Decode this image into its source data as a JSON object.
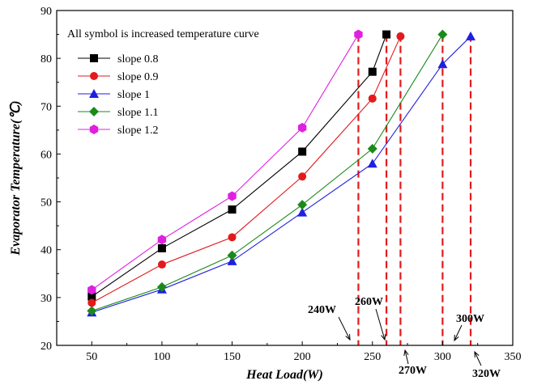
{
  "chart_data": {
    "type": "line",
    "xlabel": "Heat Load(W)",
    "ylabel": "Evaporator Temperature(℃)",
    "xlim": [
      25,
      350
    ],
    "ylim": [
      20,
      90
    ],
    "xticks": [
      50,
      100,
      150,
      200,
      250,
      300,
      350
    ],
    "yticks": [
      20,
      30,
      40,
      50,
      60,
      70,
      80,
      90
    ],
    "grid": false,
    "legend_title": "All symbol is increased temperature curve",
    "legend_position": "top-left",
    "series": [
      {
        "name": "slope 0.8",
        "color": "#000000",
        "marker": "square",
        "x": [
          50,
          100,
          150,
          200,
          250,
          260
        ],
        "y": [
          30.2,
          40.3,
          48.4,
          60.5,
          77.2,
          85
        ]
      },
      {
        "name": "slope 0.9",
        "color": "#e31a1c",
        "marker": "circle",
        "x": [
          50,
          100,
          150,
          200,
          250,
          270
        ],
        "y": [
          28.9,
          36.9,
          42.6,
          55.3,
          71.6,
          84.6
        ]
      },
      {
        "name": "slope 1",
        "color": "#1f1fe0",
        "marker": "triangle",
        "x": [
          50,
          100,
          150,
          200,
          250,
          300,
          320
        ],
        "y": [
          26.9,
          31.7,
          37.6,
          47.8,
          58.0,
          78.8,
          84.6
        ]
      },
      {
        "name": "slope 1.1",
        "color": "#1a8a1a",
        "marker": "diamond",
        "x": [
          50,
          100,
          150,
          200,
          250,
          300
        ],
        "y": [
          27.2,
          32.2,
          38.8,
          49.4,
          61.1,
          85
        ]
      },
      {
        "name": "slope 1.2",
        "color": "#e020e0",
        "marker": "hexagon",
        "x": [
          50,
          100,
          150,
          200,
          240
        ],
        "y": [
          31.6,
          42.1,
          51.2,
          65.5,
          85
        ]
      }
    ],
    "limit_lines": {
      "color": "#e31a1c",
      "x": [
        240,
        260,
        270,
        300,
        320
      ],
      "top_y": 85
    },
    "annotations": [
      {
        "label": "240W",
        "x": 235,
        "y": 21
      },
      {
        "label": "260W",
        "x": 255,
        "y": 21
      },
      {
        "label": "270W",
        "x": 272,
        "y": 19
      },
      {
        "label": "300W",
        "x": 303,
        "y": 21
      },
      {
        "label": "320W",
        "x": 318,
        "y": 19
      }
    ]
  }
}
